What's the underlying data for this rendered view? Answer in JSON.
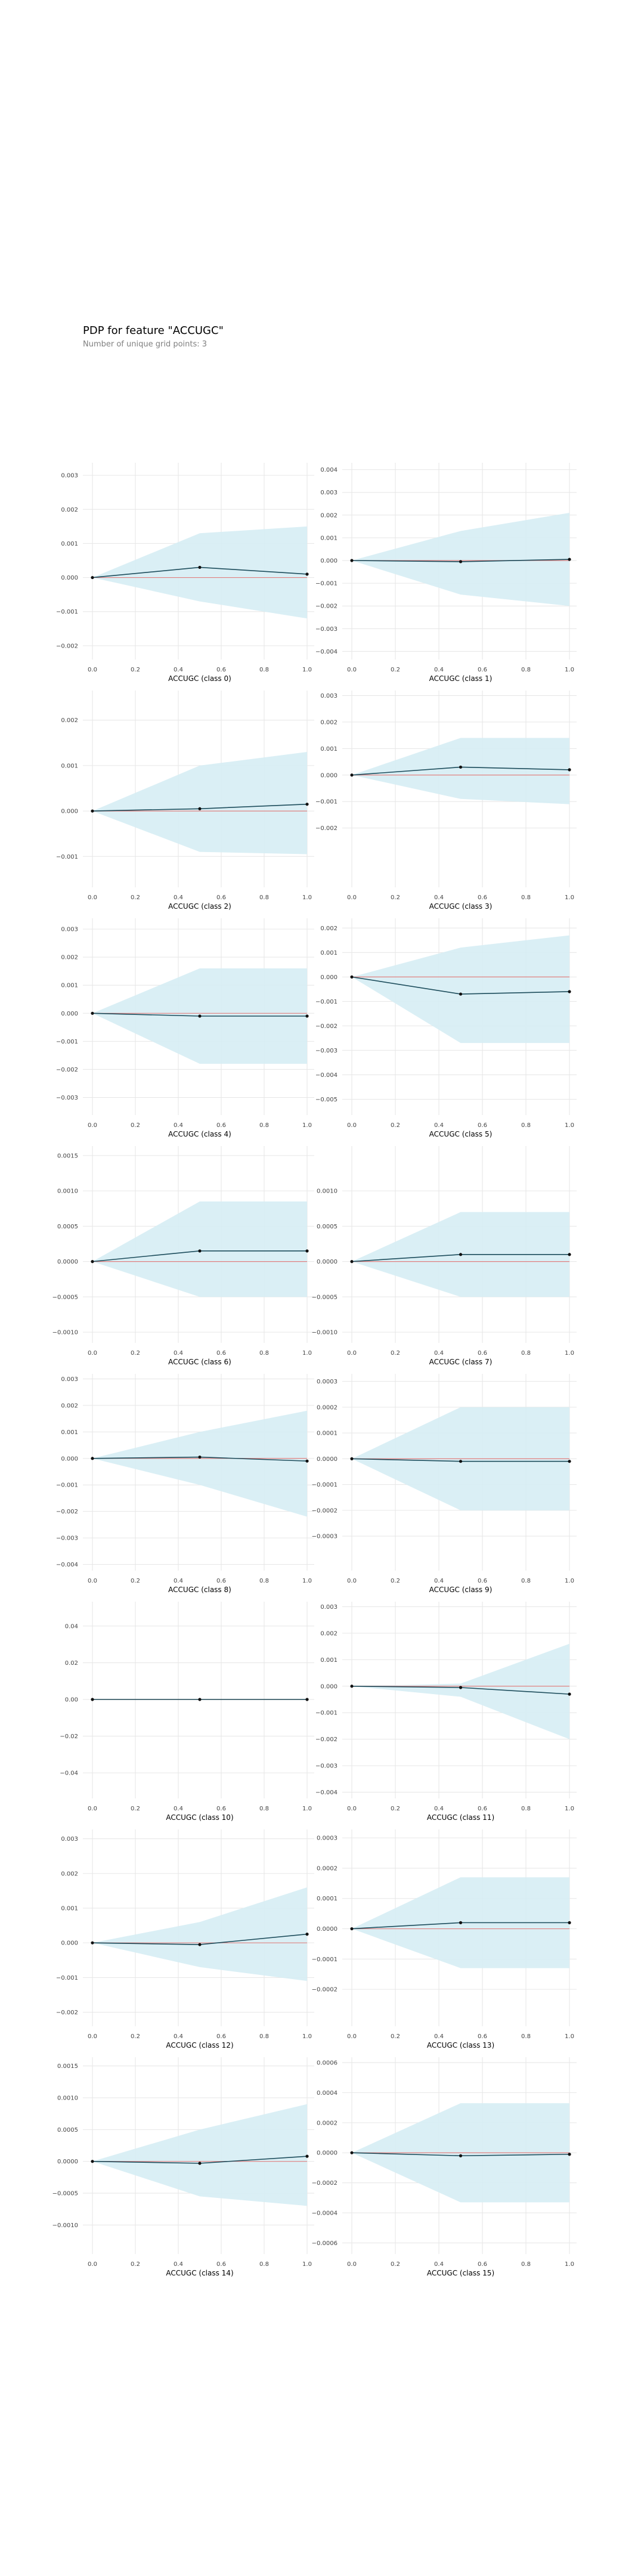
{
  "header": {
    "title": "PDP for feature \"ACCUGC\"",
    "subtitle": "Number of unique grid points: 3"
  },
  "colors": {
    "band": "#d6edf4",
    "line": "#1d4d5c",
    "baseline": "#e08080",
    "grid": "#e6e6e6"
  },
  "chart_data": [
    {
      "type": "line",
      "xlabel": "ACCUGC (class 0)",
      "x": [
        0,
        0.5,
        1
      ],
      "mean": [
        0,
        0.0003,
        0.0001
      ],
      "upper": [
        0,
        0.0013,
        0.0015
      ],
      "lower": [
        0,
        -0.0007,
        -0.0012
      ],
      "ylim": [
        -0.0023,
        0.0033
      ],
      "yticks": [
        -0.002,
        -0.001,
        0,
        0.001,
        0.002,
        0.003
      ],
      "ytick_labels": [
        "−0.002",
        "−0.001",
        "0.000",
        "0.001",
        "0.002",
        "0.003"
      ]
    },
    {
      "type": "line",
      "xlabel": "ACCUGC (class 1)",
      "x": [
        0,
        0.5,
        1
      ],
      "mean": [
        0,
        -5e-05,
        5e-05
      ],
      "upper": [
        0,
        0.0013,
        0.0021
      ],
      "lower": [
        0,
        -0.0015,
        -0.002
      ],
      "ylim": [
        -0.0042,
        0.0042
      ],
      "yticks": [
        -0.004,
        -0.003,
        -0.002,
        -0.001,
        0,
        0.001,
        0.002,
        0.003,
        0.004
      ],
      "ytick_labels": [
        "−0.004",
        "−0.003",
        "−0.002",
        "−0.001",
        "0.000",
        "0.001",
        "0.002",
        "0.003",
        "0.004"
      ]
    },
    {
      "type": "line",
      "xlabel": "ACCUGC (class 2)",
      "x": [
        0,
        0.5,
        1
      ],
      "mean": [
        0,
        5e-05,
        0.00015
      ],
      "upper": [
        0,
        0.001,
        0.0013
      ],
      "lower": [
        0,
        -0.0009,
        -0.00095
      ],
      "ylim": [
        -0.0016,
        0.0026
      ],
      "yticks": [
        -0.001,
        0,
        0.001,
        0.002
      ],
      "ytick_labels": [
        "−0.001",
        "0.000",
        "0.001",
        "0.002"
      ]
    },
    {
      "type": "line",
      "xlabel": "ACCUGC (class 3)",
      "x": [
        0,
        0.5,
        1
      ],
      "mean": [
        0,
        0.0003,
        0.0002
      ],
      "upper": [
        0,
        0.0014,
        0.0014
      ],
      "lower": [
        0,
        -0.0009,
        -0.0011
      ],
      "ylim": [
        -0.0041,
        0.0031
      ],
      "yticks": [
        -0.002,
        -0.001,
        0,
        0.001,
        0.002,
        0.003
      ],
      "ytick_labels": [
        "−0.002",
        "−0.001",
        "0.000",
        "0.001",
        "0.002",
        "0.003"
      ]
    },
    {
      "type": "line",
      "xlabel": "ACCUGC (class 4)",
      "x": [
        0,
        0.5,
        1
      ],
      "mean": [
        0,
        -0.0001,
        -0.0001
      ],
      "upper": [
        0,
        0.0016,
        0.0016
      ],
      "lower": [
        0,
        -0.0018,
        -0.0018
      ],
      "ylim": [
        -0.0035,
        0.0033
      ],
      "yticks": [
        -0.003,
        -0.002,
        -0.001,
        0,
        0.001,
        0.002,
        0.003
      ],
      "ytick_labels": [
        "−0.003",
        "−0.002",
        "−0.001",
        "0.000",
        "0.001",
        "0.002",
        "0.003"
      ]
    },
    {
      "type": "line",
      "xlabel": "ACCUGC (class 5)",
      "x": [
        0,
        0.5,
        1
      ],
      "mean": [
        0,
        -0.0007,
        -0.0006
      ],
      "upper": [
        0,
        0.0012,
        0.0017
      ],
      "lower": [
        0,
        -0.0027,
        -0.0027
      ],
      "ylim": [
        -0.0055,
        0.0023
      ],
      "yticks": [
        -0.005,
        -0.004,
        -0.003,
        -0.002,
        -0.001,
        0,
        0.001,
        0.002
      ],
      "ytick_labels": [
        "−0.005",
        "−0.004",
        "−0.003",
        "−0.002",
        "−0.001",
        "0.000",
        "0.001",
        "0.002"
      ]
    },
    {
      "type": "line",
      "xlabel": "ACCUGC (class 6)",
      "x": [
        0,
        0.5,
        1
      ],
      "mean": [
        0,
        0.00015,
        0.00015
      ],
      "upper": [
        0,
        0.00085,
        0.00085
      ],
      "lower": [
        0,
        -0.0005,
        -0.0005
      ],
      "ylim": [
        -0.0011,
        0.0016
      ],
      "yticks": [
        -0.001,
        -0.0005,
        0,
        0.0005,
        0.001,
        0.0015
      ],
      "ytick_labels": [
        "−0.0010",
        "−0.0005",
        "0.0000",
        "0.0005",
        "0.0010",
        "0.0015"
      ]
    },
    {
      "type": "line",
      "xlabel": "ACCUGC (class 7)",
      "x": [
        0,
        0.5,
        1
      ],
      "mean": [
        0,
        0.0001,
        0.0001
      ],
      "upper": [
        0,
        0.0007,
        0.0007
      ],
      "lower": [
        0,
        -0.0005,
        -0.0005
      ],
      "ylim": [
        -0.0011,
        0.0016
      ],
      "yticks": [
        -0.001,
        -0.0005,
        0,
        0.0005,
        0.001
      ],
      "ytick_labels": [
        "−0.0010",
        "−0.0005",
        "0.0000",
        "0.0005",
        "0.0010"
      ]
    },
    {
      "type": "line",
      "xlabel": "ACCUGC (class 8)",
      "x": [
        0,
        0.5,
        1
      ],
      "mean": [
        0,
        5e-05,
        -0.0001
      ],
      "upper": [
        0,
        0.001,
        0.0018
      ],
      "lower": [
        0,
        -0.001,
        -0.0022
      ],
      "ylim": [
        -0.0041,
        0.0031
      ],
      "yticks": [
        -0.004,
        -0.003,
        -0.002,
        -0.001,
        0,
        0.001,
        0.002,
        0.003
      ],
      "ytick_labels": [
        "−0.004",
        "−0.003",
        "−0.002",
        "−0.001",
        "0.000",
        "0.001",
        "0.002",
        "0.003"
      ]
    },
    {
      "type": "line",
      "xlabel": "ACCUGC (class 9)",
      "x": [
        0,
        0.5,
        1
      ],
      "mean": [
        0,
        -1e-05,
        -1e-05
      ],
      "upper": [
        0,
        0.0002,
        0.0002
      ],
      "lower": [
        0,
        -0.0002,
        -0.0002
      ],
      "ylim": [
        -0.00042,
        0.00032
      ],
      "yticks": [
        -0.0003,
        -0.0002,
        -0.0001,
        0,
        0.0001,
        0.0002,
        0.0003
      ],
      "ytick_labels": [
        "−0.0003",
        "−0.0002",
        "−0.0001",
        "0.0000",
        "0.0001",
        "0.0002",
        "0.0003"
      ]
    },
    {
      "type": "line",
      "xlabel": "ACCUGC (class 10)",
      "x": [
        0,
        0.5,
        1
      ],
      "mean": [
        0,
        0,
        0
      ],
      "upper": [
        0,
        0,
        0
      ],
      "lower": [
        0,
        0,
        0
      ],
      "ylim": [
        -0.052,
        0.052
      ],
      "yticks": [
        -0.04,
        -0.02,
        0,
        0.02,
        0.04
      ],
      "ytick_labels": [
        "−0.04",
        "−0.02",
        "0.00",
        "0.02",
        "0.04"
      ]
    },
    {
      "type": "line",
      "xlabel": "ACCUGC (class 11)",
      "x": [
        0,
        0.5,
        1
      ],
      "mean": [
        0,
        -5e-05,
        -0.0003
      ],
      "upper": [
        0,
        0.0001,
        0.0016
      ],
      "lower": [
        0,
        -0.0004,
        -0.002
      ],
      "ylim": [
        -0.0041,
        0.0031
      ],
      "yticks": [
        -0.004,
        -0.003,
        -0.002,
        -0.001,
        0,
        0.001,
        0.002,
        0.003
      ],
      "ytick_labels": [
        "−0.004",
        "−0.003",
        "−0.002",
        "−0.001",
        "0.000",
        "0.001",
        "0.002",
        "0.003"
      ]
    },
    {
      "type": "line",
      "xlabel": "ACCUGC (class 12)",
      "x": [
        0,
        0.5,
        1
      ],
      "mean": [
        0,
        -5e-05,
        0.00025
      ],
      "upper": [
        0,
        0.0006,
        0.0016
      ],
      "lower": [
        0,
        -0.0007,
        -0.0011
      ],
      "ylim": [
        -0.0023,
        0.0032
      ],
      "yticks": [
        -0.002,
        -0.001,
        0,
        0.001,
        0.002,
        0.003
      ],
      "ytick_labels": [
        "−0.002",
        "−0.001",
        "0.000",
        "0.001",
        "0.002",
        "0.003"
      ]
    },
    {
      "type": "line",
      "xlabel": "ACCUGC (class 13)",
      "x": [
        0,
        0.5,
        1
      ],
      "mean": [
        0,
        2e-05,
        2e-05
      ],
      "upper": [
        0,
        0.00017,
        0.00017
      ],
      "lower": [
        0,
        -0.00013,
        -0.00013
      ],
      "ylim": [
        -0.00031,
        0.00032
      ],
      "yticks": [
        -0.0002,
        -0.0001,
        0,
        0.0001,
        0.0002,
        0.0003
      ],
      "ytick_labels": [
        "−0.0002",
        "−0.0001",
        "0.0000",
        "0.0001",
        "0.0002",
        "0.0003"
      ]
    },
    {
      "type": "line",
      "xlabel": "ACCUGC (class 14)",
      "x": [
        0,
        0.5,
        1
      ],
      "mean": [
        0,
        -3e-05,
        8e-05
      ],
      "upper": [
        0,
        0.0005,
        0.0009
      ],
      "lower": [
        0,
        -0.00055,
        -0.0007
      ],
      "ylim": [
        -0.0014,
        0.0016
      ],
      "yticks": [
        -0.001,
        -0.0005,
        0,
        0.0005,
        0.001,
        0.0015
      ],
      "ytick_labels": [
        "−0.0010",
        "−0.0005",
        "0.0000",
        "0.0005",
        "0.0010",
        "0.0015"
      ]
    },
    {
      "type": "line",
      "xlabel": "ACCUGC (class 15)",
      "x": [
        0,
        0.5,
        1
      ],
      "mean": [
        0,
        -2e-05,
        -1e-05
      ],
      "upper": [
        0,
        0.00033,
        0.00033
      ],
      "lower": [
        0,
        -0.00033,
        -0.00033
      ],
      "ylim": [
        -0.00065,
        0.00062
      ],
      "yticks": [
        -0.0006,
        -0.0004,
        -0.0002,
        0,
        0.0002,
        0.0004,
        0.0006
      ],
      "ytick_labels": [
        "−0.0006",
        "−0.0004",
        "−0.0002",
        "0.0000",
        "0.0002",
        "0.0004",
        "0.0006"
      ]
    }
  ],
  "xticks": [
    0,
    0.2,
    0.4,
    0.6,
    0.8,
    1.0
  ],
  "xtick_labels": [
    "0.0",
    "0.2",
    "0.4",
    "0.6",
    "0.8",
    "1.0"
  ]
}
